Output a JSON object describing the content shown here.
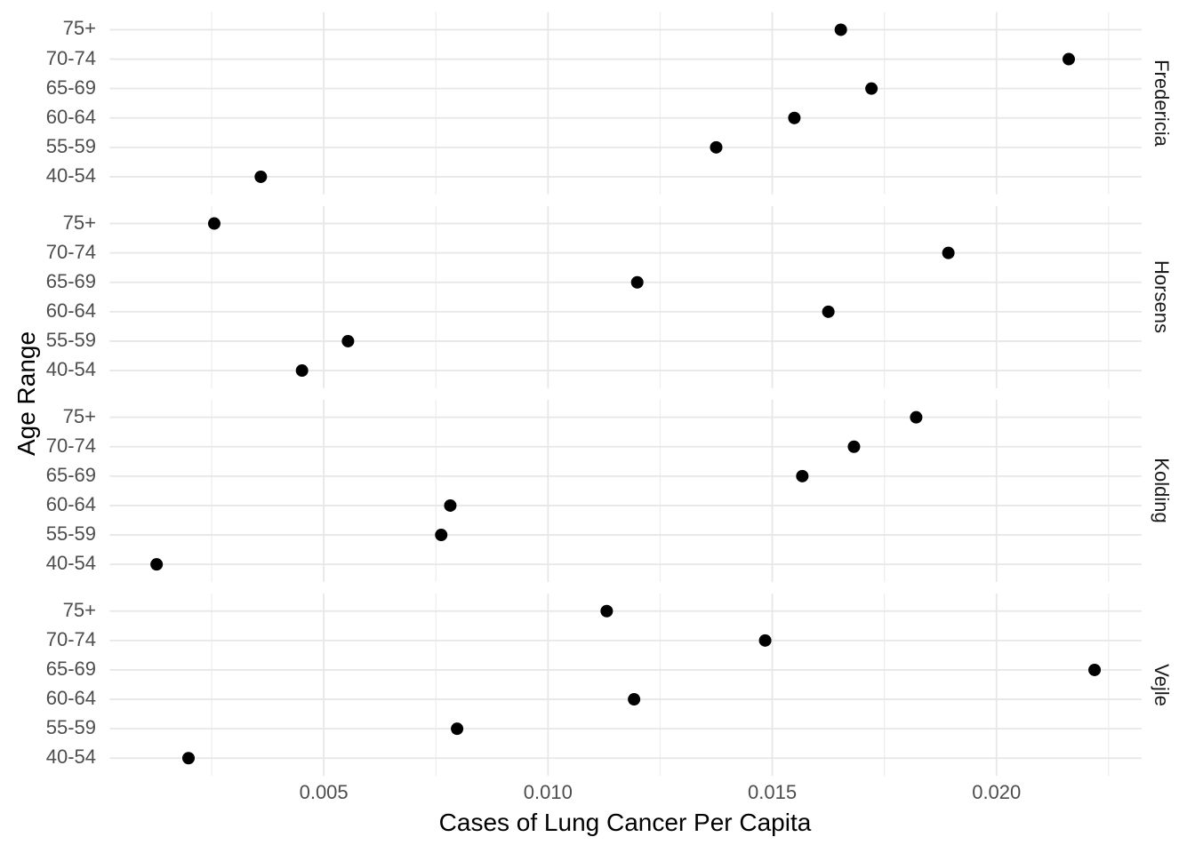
{
  "chart_data": {
    "type": "scatter",
    "title": "",
    "xlabel": "Cases of Lung Cancer Per Capita",
    "ylabel": "Age Range",
    "facet_variable_values": [
      "Fredericia",
      "Horsens",
      "Kolding",
      "Vejle"
    ],
    "categories_top_to_bottom": [
      "75+",
      "70-74",
      "65-69",
      "60-64",
      "55-59",
      "40-54"
    ],
    "series": [
      {
        "name": "Fredericia",
        "values": [
          0.016529,
          0.021611,
          0.017212,
          0.015493,
          0.01375,
          0.003596
        ]
      },
      {
        "name": "Horsens",
        "values": [
          0.002558,
          0.018927,
          0.01199,
          0.016251,
          0.00554,
          0.004515
        ]
      },
      {
        "name": "Kolding",
        "values": [
          0.018209,
          0.016822,
          0.01567,
          0.007821,
          0.007619,
          0.001273
        ]
      },
      {
        "name": "Vejle",
        "values": [
          0.011309,
          0.014842,
          0.022187,
          0.011919,
          0.007973,
          0.001984
        ]
      }
    ],
    "x_ticks": [
      0.005,
      0.01,
      0.015,
      0.02
    ],
    "x_tick_labels": [
      "0.005",
      "0.010",
      "0.015",
      "0.020"
    ],
    "x_minor_ticks": [
      0.0025,
      0.0075,
      0.0125,
      0.0175,
      0.0225
    ],
    "xlim": [
      0.0002273,
      0.0232327
    ],
    "grid": true,
    "legend_position": "none",
    "facet_strip_side": "right",
    "colors": {
      "background": "#ffffff",
      "point": "#000000",
      "grid_major": "#e7e7e7",
      "grid_minor": "#ededed",
      "axis_text": "#4d4d4d",
      "strip_text": "#1a1a1a",
      "axis_title": "#000000"
    }
  }
}
